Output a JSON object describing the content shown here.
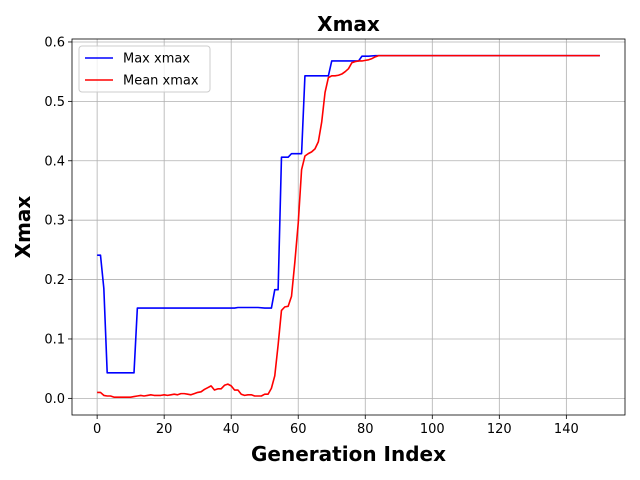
{
  "chart_data": {
    "type": "line",
    "title": "Xmax",
    "xlabel": "Generation Index",
    "ylabel": "Xmax",
    "xlim": [
      -7.5,
      157.5
    ],
    "ylim": [
      -0.028,
      0.605
    ],
    "xticks": [
      0,
      20,
      40,
      60,
      80,
      100,
      120,
      140
    ],
    "yticks": [
      0.0,
      0.1,
      0.2,
      0.3,
      0.4,
      0.5,
      0.6
    ],
    "ytick_labels": [
      "0.0",
      "0.1",
      "0.2",
      "0.3",
      "0.4",
      "0.5",
      "0.6"
    ],
    "grid": true,
    "legend_position": "top-left",
    "series": [
      {
        "name": "Max xmax",
        "color": "#0000ff",
        "points": [
          [
            0,
            0.241
          ],
          [
            1,
            0.241
          ],
          [
            2,
            0.185
          ],
          [
            3,
            0.043
          ],
          [
            4,
            0.043
          ],
          [
            5,
            0.043
          ],
          [
            6,
            0.043
          ],
          [
            7,
            0.043
          ],
          [
            8,
            0.043
          ],
          [
            9,
            0.043
          ],
          [
            10,
            0.043
          ],
          [
            11,
            0.043
          ],
          [
            12,
            0.152
          ],
          [
            13,
            0.152
          ],
          [
            20,
            0.152
          ],
          [
            30,
            0.152
          ],
          [
            40,
            0.152
          ],
          [
            41,
            0.152
          ],
          [
            42,
            0.153
          ],
          [
            45,
            0.153
          ],
          [
            48,
            0.153
          ],
          [
            50,
            0.152
          ],
          [
            52,
            0.152
          ],
          [
            53,
            0.183
          ],
          [
            54,
            0.183
          ],
          [
            55,
            0.406
          ],
          [
            56,
            0.406
          ],
          [
            57,
            0.406
          ],
          [
            58,
            0.412
          ],
          [
            59,
            0.412
          ],
          [
            60,
            0.412
          ],
          [
            61,
            0.412
          ],
          [
            62,
            0.543
          ],
          [
            63,
            0.543
          ],
          [
            65,
            0.543
          ],
          [
            67,
            0.543
          ],
          [
            69,
            0.543
          ],
          [
            70,
            0.568
          ],
          [
            72,
            0.568
          ],
          [
            75,
            0.568
          ],
          [
            78,
            0.568
          ],
          [
            79,
            0.576
          ],
          [
            81,
            0.576
          ],
          [
            83,
            0.577
          ],
          [
            90,
            0.577
          ],
          [
            100,
            0.577
          ],
          [
            110,
            0.577
          ],
          [
            120,
            0.577
          ],
          [
            130,
            0.577
          ],
          [
            140,
            0.577
          ],
          [
            150,
            0.577
          ]
        ]
      },
      {
        "name": "Mean xmax",
        "color": "#ff0000",
        "points": [
          [
            0,
            0.01
          ],
          [
            1,
            0.01
          ],
          [
            2,
            0.005
          ],
          [
            3,
            0.004
          ],
          [
            4,
            0.004
          ],
          [
            5,
            0.002
          ],
          [
            6,
            0.002
          ],
          [
            7,
            0.002
          ],
          [
            8,
            0.002
          ],
          [
            9,
            0.002
          ],
          [
            10,
            0.002
          ],
          [
            11,
            0.003
          ],
          [
            12,
            0.004
          ],
          [
            13,
            0.005
          ],
          [
            14,
            0.004
          ],
          [
            15,
            0.005
          ],
          [
            16,
            0.006
          ],
          [
            17,
            0.005
          ],
          [
            18,
            0.005
          ],
          [
            19,
            0.005
          ],
          [
            20,
            0.006
          ],
          [
            21,
            0.005
          ],
          [
            22,
            0.006
          ],
          [
            23,
            0.007
          ],
          [
            24,
            0.006
          ],
          [
            25,
            0.008
          ],
          [
            26,
            0.008
          ],
          [
            27,
            0.007
          ],
          [
            28,
            0.006
          ],
          [
            29,
            0.008
          ],
          [
            30,
            0.01
          ],
          [
            31,
            0.011
          ],
          [
            32,
            0.015
          ],
          [
            33,
            0.018
          ],
          [
            34,
            0.021
          ],
          [
            35,
            0.014
          ],
          [
            36,
            0.016
          ],
          [
            37,
            0.016
          ],
          [
            38,
            0.022
          ],
          [
            39,
            0.024
          ],
          [
            40,
            0.021
          ],
          [
            41,
            0.014
          ],
          [
            42,
            0.014
          ],
          [
            43,
            0.007
          ],
          [
            44,
            0.005
          ],
          [
            45,
            0.006
          ],
          [
            46,
            0.006
          ],
          [
            47,
            0.004
          ],
          [
            48,
            0.004
          ],
          [
            49,
            0.004
          ],
          [
            50,
            0.007
          ],
          [
            51,
            0.007
          ],
          [
            52,
            0.017
          ],
          [
            53,
            0.038
          ],
          [
            54,
            0.09
          ],
          [
            55,
            0.148
          ],
          [
            56,
            0.154
          ],
          [
            57,
            0.155
          ],
          [
            58,
            0.172
          ],
          [
            59,
            0.23
          ],
          [
            60,
            0.295
          ],
          [
            61,
            0.385
          ],
          [
            62,
            0.408
          ],
          [
            63,
            0.412
          ],
          [
            64,
            0.415
          ],
          [
            65,
            0.42
          ],
          [
            66,
            0.432
          ],
          [
            67,
            0.465
          ],
          [
            68,
            0.515
          ],
          [
            69,
            0.54
          ],
          [
            70,
            0.543
          ],
          [
            71,
            0.543
          ],
          [
            72,
            0.544
          ],
          [
            73,
            0.546
          ],
          [
            74,
            0.55
          ],
          [
            75,
            0.555
          ],
          [
            76,
            0.565
          ],
          [
            77,
            0.567
          ],
          [
            78,
            0.568
          ],
          [
            79,
            0.568
          ],
          [
            80,
            0.569
          ],
          [
            81,
            0.57
          ],
          [
            82,
            0.572
          ],
          [
            83,
            0.575
          ],
          [
            84,
            0.577
          ],
          [
            90,
            0.577
          ],
          [
            100,
            0.577
          ],
          [
            110,
            0.577
          ],
          [
            120,
            0.577
          ],
          [
            130,
            0.577
          ],
          [
            140,
            0.577
          ],
          [
            150,
            0.577
          ]
        ]
      }
    ]
  }
}
